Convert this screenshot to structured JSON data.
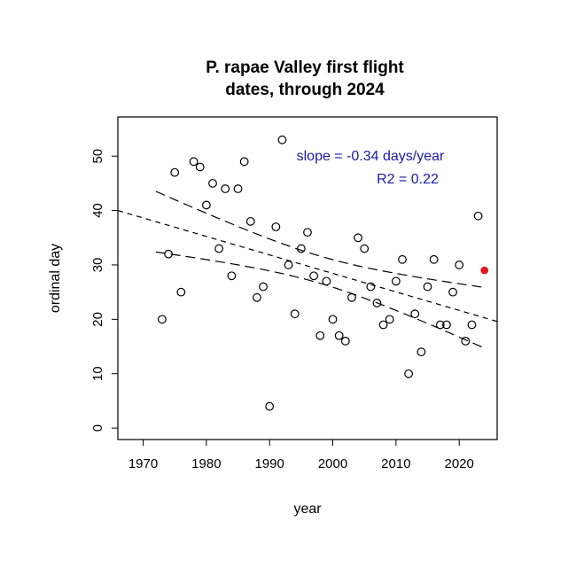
{
  "chart_data": {
    "type": "scatter",
    "title_lines": [
      "P. rapae Valley first flight",
      "dates, through 2024"
    ],
    "xlabel": "year",
    "ylabel": "ordinal day",
    "xlim": [
      1966,
      2026
    ],
    "ylim": [
      -2.1,
      57.2
    ],
    "xticks": [
      1970,
      1980,
      1990,
      2000,
      2010,
      2020
    ],
    "yticks": [
      0,
      10,
      20,
      30,
      40,
      50
    ],
    "grid": false,
    "points": [
      [
        1973,
        20
      ],
      [
        1974,
        32
      ],
      [
        1975,
        47
      ],
      [
        1976,
        25
      ],
      [
        1978,
        49
      ],
      [
        1979,
        48
      ],
      [
        1980,
        41
      ],
      [
        1981,
        45
      ],
      [
        1982,
        33
      ],
      [
        1983,
        44
      ],
      [
        1984,
        28
      ],
      [
        1985,
        44
      ],
      [
        1986,
        49
      ],
      [
        1987,
        38
      ],
      [
        1988,
        24
      ],
      [
        1989,
        26
      ],
      [
        1990,
        4
      ],
      [
        1991,
        37
      ],
      [
        1992,
        53
      ],
      [
        1993,
        30
      ],
      [
        1994,
        21
      ],
      [
        1995,
        33
      ],
      [
        1996,
        36
      ],
      [
        1997,
        28
      ],
      [
        1998,
        17
      ],
      [
        1999,
        27
      ],
      [
        2000,
        20
      ],
      [
        2001,
        17
      ],
      [
        2002,
        16
      ],
      [
        2003,
        24
      ],
      [
        2004,
        35
      ],
      [
        2005,
        33
      ],
      [
        2006,
        26
      ],
      [
        2007,
        23
      ],
      [
        2008,
        19
      ],
      [
        2009,
        20
      ],
      [
        2010,
        27
      ],
      [
        2011,
        31
      ],
      [
        2012,
        10
      ],
      [
        2013,
        21
      ],
      [
        2014,
        14
      ],
      [
        2015,
        26
      ],
      [
        2016,
        31
      ],
      [
        2017,
        19
      ],
      [
        2018,
        19
      ],
      [
        2019,
        25
      ],
      [
        2020,
        30
      ],
      [
        2021,
        16
      ],
      [
        2022,
        19
      ],
      [
        2023,
        39
      ]
    ],
    "highlight_point": [
      2024,
      29
    ],
    "highlight_color": "#e8141b",
    "regression": {
      "slope": -0.34,
      "value_at_1966": 40
    },
    "confidence_band": {
      "x_range": [
        1972,
        2024
      ],
      "upper_at_ends": [
        43.7,
        25.6
      ],
      "lower_at_ends": [
        32.3,
        14.7
      ]
    },
    "annotations": [
      "slope = -0.34 days/year",
      "R2 = 0.22"
    ],
    "annotation_color": "#1a1aa6"
  }
}
